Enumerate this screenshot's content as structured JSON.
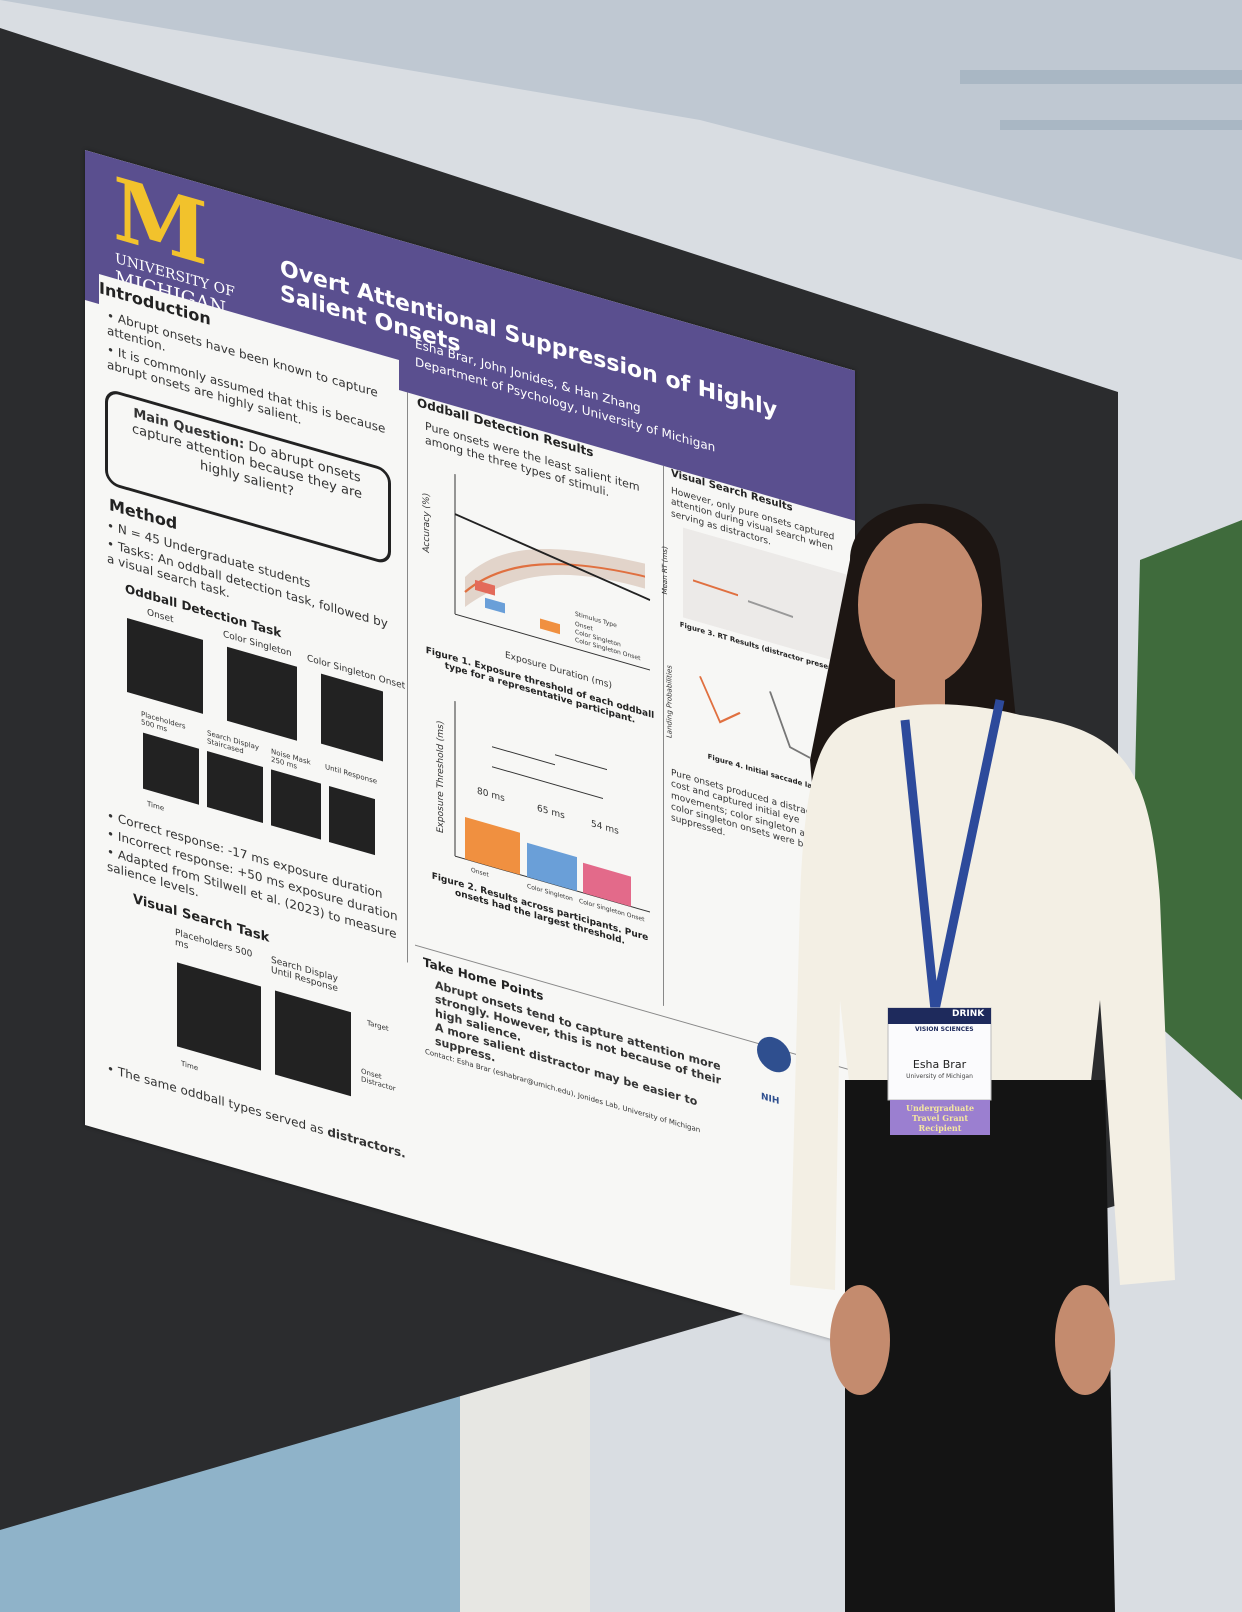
{
  "poster": {
    "logo": {
      "letter": "M",
      "line1": "UNIVERSITY OF",
      "line2": "MICHIGAN"
    },
    "title": "Overt Attentional Suppression of Highly Salient Onsets",
    "authors": "Esha Brar, John Jonides, & Han Zhang",
    "affiliation": "Department of Psychology, University of Michigan",
    "introduction": {
      "heading": "Introduction",
      "bullets": [
        "Abrupt onsets have been known to capture attention.",
        "It is commonly assumed that this is because abrupt onsets are highly salient."
      ]
    },
    "main_question": {
      "label": "Main Question:",
      "text": "Do abrupt onsets capture attention because they are highly salient?"
    },
    "method": {
      "heading": "Method",
      "bullets": [
        "N = 45 Undergraduate students",
        "Tasks: An oddball detection task, followed by a visual search task."
      ]
    },
    "oddball_task": {
      "heading": "Oddball Detection Task",
      "stimuli": [
        "Onset",
        "Color Singleton",
        "Color Singleton Onset"
      ],
      "sequence": [
        "Placeholders 500 ms",
        "Search Display Staircased",
        "Noise Mask 250 ms",
        "Until Response"
      ],
      "time": "Time",
      "bullets": [
        "Correct response: -17 ms exposure duration",
        "Incorrect response: +50 ms exposure duration",
        "Adapted from Stilwell et al. (2023) to measure salience levels."
      ]
    },
    "search_task": {
      "heading": "Visual Search Task",
      "sequence": [
        "Placeholders 500 ms",
        "Search Display Until Response"
      ],
      "annotations": [
        "Target",
        "Onset Distractor"
      ],
      "time": "Time",
      "bullet_start": "The same oddball types served as ",
      "bullet_emph": "distractors."
    },
    "oddball_results": {
      "heading": "Oddball Detection Results",
      "text": "Pure onsets were the least salient item among the three types of stimuli.",
      "fig1_ylabel": "Accuracy (%)",
      "fig1_xlabel": "Exposure Duration (ms)",
      "legend_title": "Stimulus Type",
      "legend": [
        "Onset",
        "Color Singleton",
        "Color Singleton Onset"
      ],
      "fig1_caption": "Figure 1. Exposure threshold of each oddball type for a representative participant.",
      "fig2_ylabel": "Exposure Threshold (ms)",
      "fig2_bar_labels": [
        "80 ms",
        "65 ms",
        "54 ms"
      ],
      "fig2_categories": [
        "Onset",
        "Color Singleton",
        "Color Singleton Onset"
      ],
      "fig2_caption": "Figure 2. Results across participants. Pure onsets had the largest threshold."
    },
    "search_results": {
      "heading": "Visual Search Results",
      "text": "However, only pure onsets captured attention during visual search when serving as distractors.",
      "fig3_ylabel": "Mean RT (ms)",
      "fig3_caption": "Figure 3. RT Results (distractor present vs.",
      "fig4_ylabel": "Landing Probabilities",
      "fig4_caption": "Figure 4. Initial saccade landing",
      "text2": "Pure onsets produced a distractor cost and captured initial eye movements; color singleton and color singleton onsets were both suppressed."
    },
    "take_home": {
      "heading": "Take Home Points",
      "points": [
        "Abrupt onsets tend to capture attention more strongly. However, this is not because of their high salience.",
        "A more salient distractor may be easier to suppress."
      ],
      "contact": "Contact: Esha Brar (eshabrar@umich.edu), Jonides Lab, University of Michigan"
    },
    "logos": [
      "NIH"
    ]
  },
  "badge": {
    "top": "DRINK",
    "event": "VISION SCIENCES",
    "name": "Esha Brar",
    "affiliation": "University of Michigan",
    "ribbon": "Undergraduate Travel Grant Recipient"
  }
}
